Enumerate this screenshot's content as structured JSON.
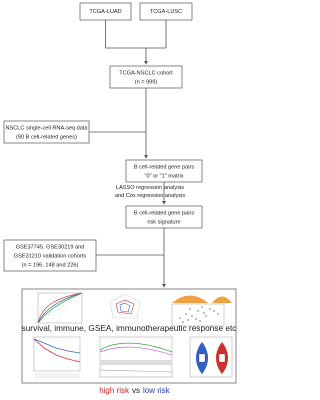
{
  "nodes": [
    {
      "lines": [
        "TCGA-LUAD"
      ]
    },
    {
      "lines": [
        "TCGA-LUSC"
      ]
    },
    {
      "lines": [
        "TCGA-NSCLC cohort",
        "(n = 999)"
      ]
    },
    {
      "lines": [
        "NSCLC single-cell RNA-seq data",
        "(90 B cell-related genes)"
      ]
    },
    {
      "lines": [
        "B cell-related gene pairs",
        "\"0\" or \"1\" matrix"
      ]
    },
    {
      "lines": [
        "LASSO regression analysis",
        "and Cox regression analysis"
      ]
    },
    {
      "lines": [
        "B cell-related gene pairs",
        "risk signature"
      ]
    },
    {
      "lines": [
        "GSE37745, GSE30219 and",
        "GSE31210 validation cohorts",
        "(n = 196, 148 and 226)"
      ]
    },
    {
      "lines": [
        "survival, immune, GSEA, immunotherapeutic response etc"
      ]
    }
  ],
  "legend": {
    "high": "high risk",
    "vs": "vs",
    "low": "low risk"
  }
}
